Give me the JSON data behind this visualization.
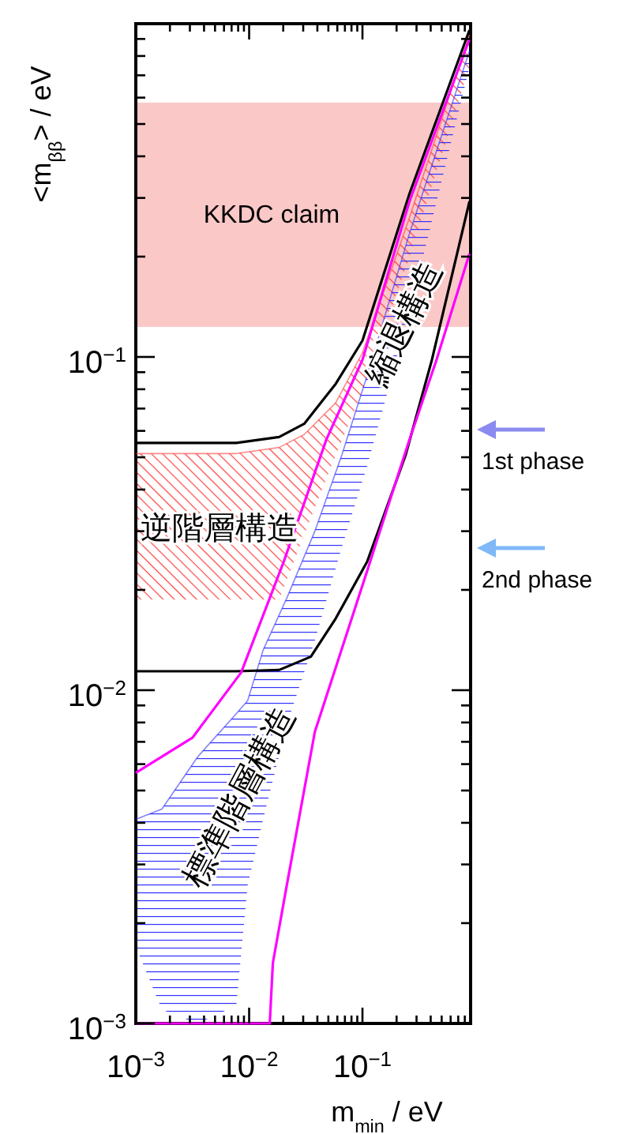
{
  "chart_data": {
    "type": "line",
    "xlabel": "m$_{min}$ / eV",
    "ylabel": "<m$_{ββ}$> / eV",
    "log": "xy",
    "xlim": [
      0.001,
      0.9
    ],
    "ylim": [
      0.001,
      1
    ],
    "xticks": [
      {
        "value": 0.001,
        "label": "10$^{−3}$"
      },
      {
        "value": 0.002,
        "label": null
      },
      {
        "value": 0.003,
        "label": null
      },
      {
        "value": 0.004,
        "label": null
      },
      {
        "value": 0.005,
        "label": null
      },
      {
        "value": 0.006,
        "label": null
      },
      {
        "value": 0.007,
        "label": null
      },
      {
        "value": 0.008,
        "label": null
      },
      {
        "value": 0.009,
        "label": null
      },
      {
        "value": 0.01,
        "label": "10$^{−2}$"
      },
      {
        "value": 0.02,
        "label": null
      },
      {
        "value": 0.03,
        "label": null
      },
      {
        "value": 0.04,
        "label": null
      },
      {
        "value": 0.05,
        "label": null
      },
      {
        "value": 0.06,
        "label": null
      },
      {
        "value": 0.07,
        "label": null
      },
      {
        "value": 0.08,
        "label": null
      },
      {
        "value": 0.09,
        "label": null
      },
      {
        "value": 0.1,
        "label": "10$^{−1}$"
      },
      {
        "value": 0.2,
        "label": null
      },
      {
        "value": 0.3,
        "label": null
      },
      {
        "value": 0.4,
        "label": null
      },
      {
        "value": 0.5,
        "label": null
      },
      {
        "value": 0.6,
        "label": null
      },
      {
        "value": 0.7,
        "label": null
      },
      {
        "value": 0.8,
        "label": null
      }
    ],
    "yticks": [
      {
        "value": 0.001,
        "label": "10$^{−3}$"
      },
      {
        "value": 0.002,
        "label": null
      },
      {
        "value": 0.003,
        "label": null
      },
      {
        "value": 0.004,
        "label": null
      },
      {
        "value": 0.005,
        "label": null
      },
      {
        "value": 0.006,
        "label": null
      },
      {
        "value": 0.007,
        "label": null
      },
      {
        "value": 0.008,
        "label": null
      },
      {
        "value": 0.009,
        "label": null
      },
      {
        "value": 0.01,
        "label": "10$^{−2}$"
      },
      {
        "value": 0.02,
        "label": null
      },
      {
        "value": 0.03,
        "label": null
      },
      {
        "value": 0.04,
        "label": null
      },
      {
        "value": 0.05,
        "label": null
      },
      {
        "value": 0.06,
        "label": null
      },
      {
        "value": 0.07,
        "label": null
      },
      {
        "value": 0.08,
        "label": null
      },
      {
        "value": 0.09,
        "label": null
      },
      {
        "value": 0.1,
        "label": "10$^{−1}$"
      },
      {
        "value": 0.2,
        "label": null
      },
      {
        "value": 0.3,
        "label": null
      },
      {
        "value": 0.4,
        "label": null
      },
      {
        "value": 0.5,
        "label": null
      },
      {
        "value": 0.6,
        "label": null
      },
      {
        "value": 0.7,
        "label": null
      },
      {
        "value": 0.8,
        "label": null
      },
      {
        "value": 0.9,
        "label": null
      }
    ],
    "bands": [
      {
        "axis": "y",
        "from": 0.123,
        "to": 0.58,
        "label": "KKDC claim",
        "color": "#fbc8c8"
      }
    ],
    "series": [
      {
        "color": "#ff4040",
        "x": [
          0.001,
          0.0077,
          0.0184,
          0.0306,
          0.058,
          0.1,
          0.26,
          0.88
        ],
        "lower": [
          0.0187,
          0.0187,
          0.0187,
          0.0293,
          0.0507,
          0.0785,
          0.2,
          0.743
        ],
        "upper": [
          0.0513,
          0.0513,
          0.0535,
          0.0585,
          0.0728,
          0.103,
          0.262,
          0.927
        ],
        "values": [
          0.0513,
          0.0513,
          0.0535,
          0.0585,
          0.0728,
          0.103,
          0.262,
          0.927
        ]
      },
      {
        "color": "#3030ff",
        "x": [
          0.001,
          0.0017,
          0.0035,
          0.0077,
          0.0097,
          0.0133,
          0.0215,
          0.038,
          0.066,
          0.11,
          0.26,
          0.88
        ],
        "lower": [
          0.0017,
          0.0011,
          0.001,
          0.00113,
          0.0026,
          0.0041,
          0.0079,
          0.0141,
          0.027,
          0.047,
          0.136,
          0.74
        ],
        "upper": [
          0.0041,
          0.0044,
          0.0063,
          0.0085,
          0.0093,
          0.0132,
          0.0189,
          0.03,
          0.051,
          0.088,
          0.235,
          0.83
        ],
        "values": [
          0.0041,
          0.0044,
          0.0063,
          0.0085,
          0.0093,
          0.0132,
          0.0189,
          0.03,
          0.051,
          0.088,
          0.235,
          0.83
        ]
      },
      {
        "color": "#000000",
        "x": [
          0.001,
          0.0077,
          0.0184,
          0.0306,
          0.058,
          0.1,
          0.26,
          0.88
        ],
        "values": [
          0.0552,
          0.0552,
          0.0575,
          0.063,
          0.083,
          0.112,
          0.309,
          0.957
        ]
      },
      {
        "color": "#000000",
        "x": [
          0.001,
          0.0077,
          0.0184,
          0.035,
          0.058,
          0.11,
          0.24,
          0.41,
          0.88
        ],
        "values": [
          0.0114,
          0.0114,
          0.0115,
          0.0126,
          0.0164,
          0.0243,
          0.0507,
          0.098,
          0.293
        ]
      },
      {
        "color": "#ff00ff",
        "x": [
          0.001,
          0.00316,
          0.0085,
          0.0202,
          0.048,
          0.1,
          0.26,
          0.88
        ],
        "values": [
          0.00565,
          0.0072,
          0.0113,
          0.0243,
          0.0565,
          0.098,
          0.293,
          0.9
        ]
      },
      {
        "color": "#ff00ff",
        "x": [
          0.001,
          0.0117,
          0.0152,
          0.0162,
          0.0215,
          0.038,
          0.11,
          0.26,
          0.45,
          0.88
        ],
        "values": [
          0.001,
          0.001,
          0.001,
          0.00152,
          0.0026,
          0.0075,
          0.0228,
          0.0565,
          0.098,
          0.204
        ]
      }
    ],
    "annotations": [
      "逆階層構造",
      "標準階層構造",
      "縮退構造",
      "1st phase",
      "2nd phase"
    ]
  }
}
